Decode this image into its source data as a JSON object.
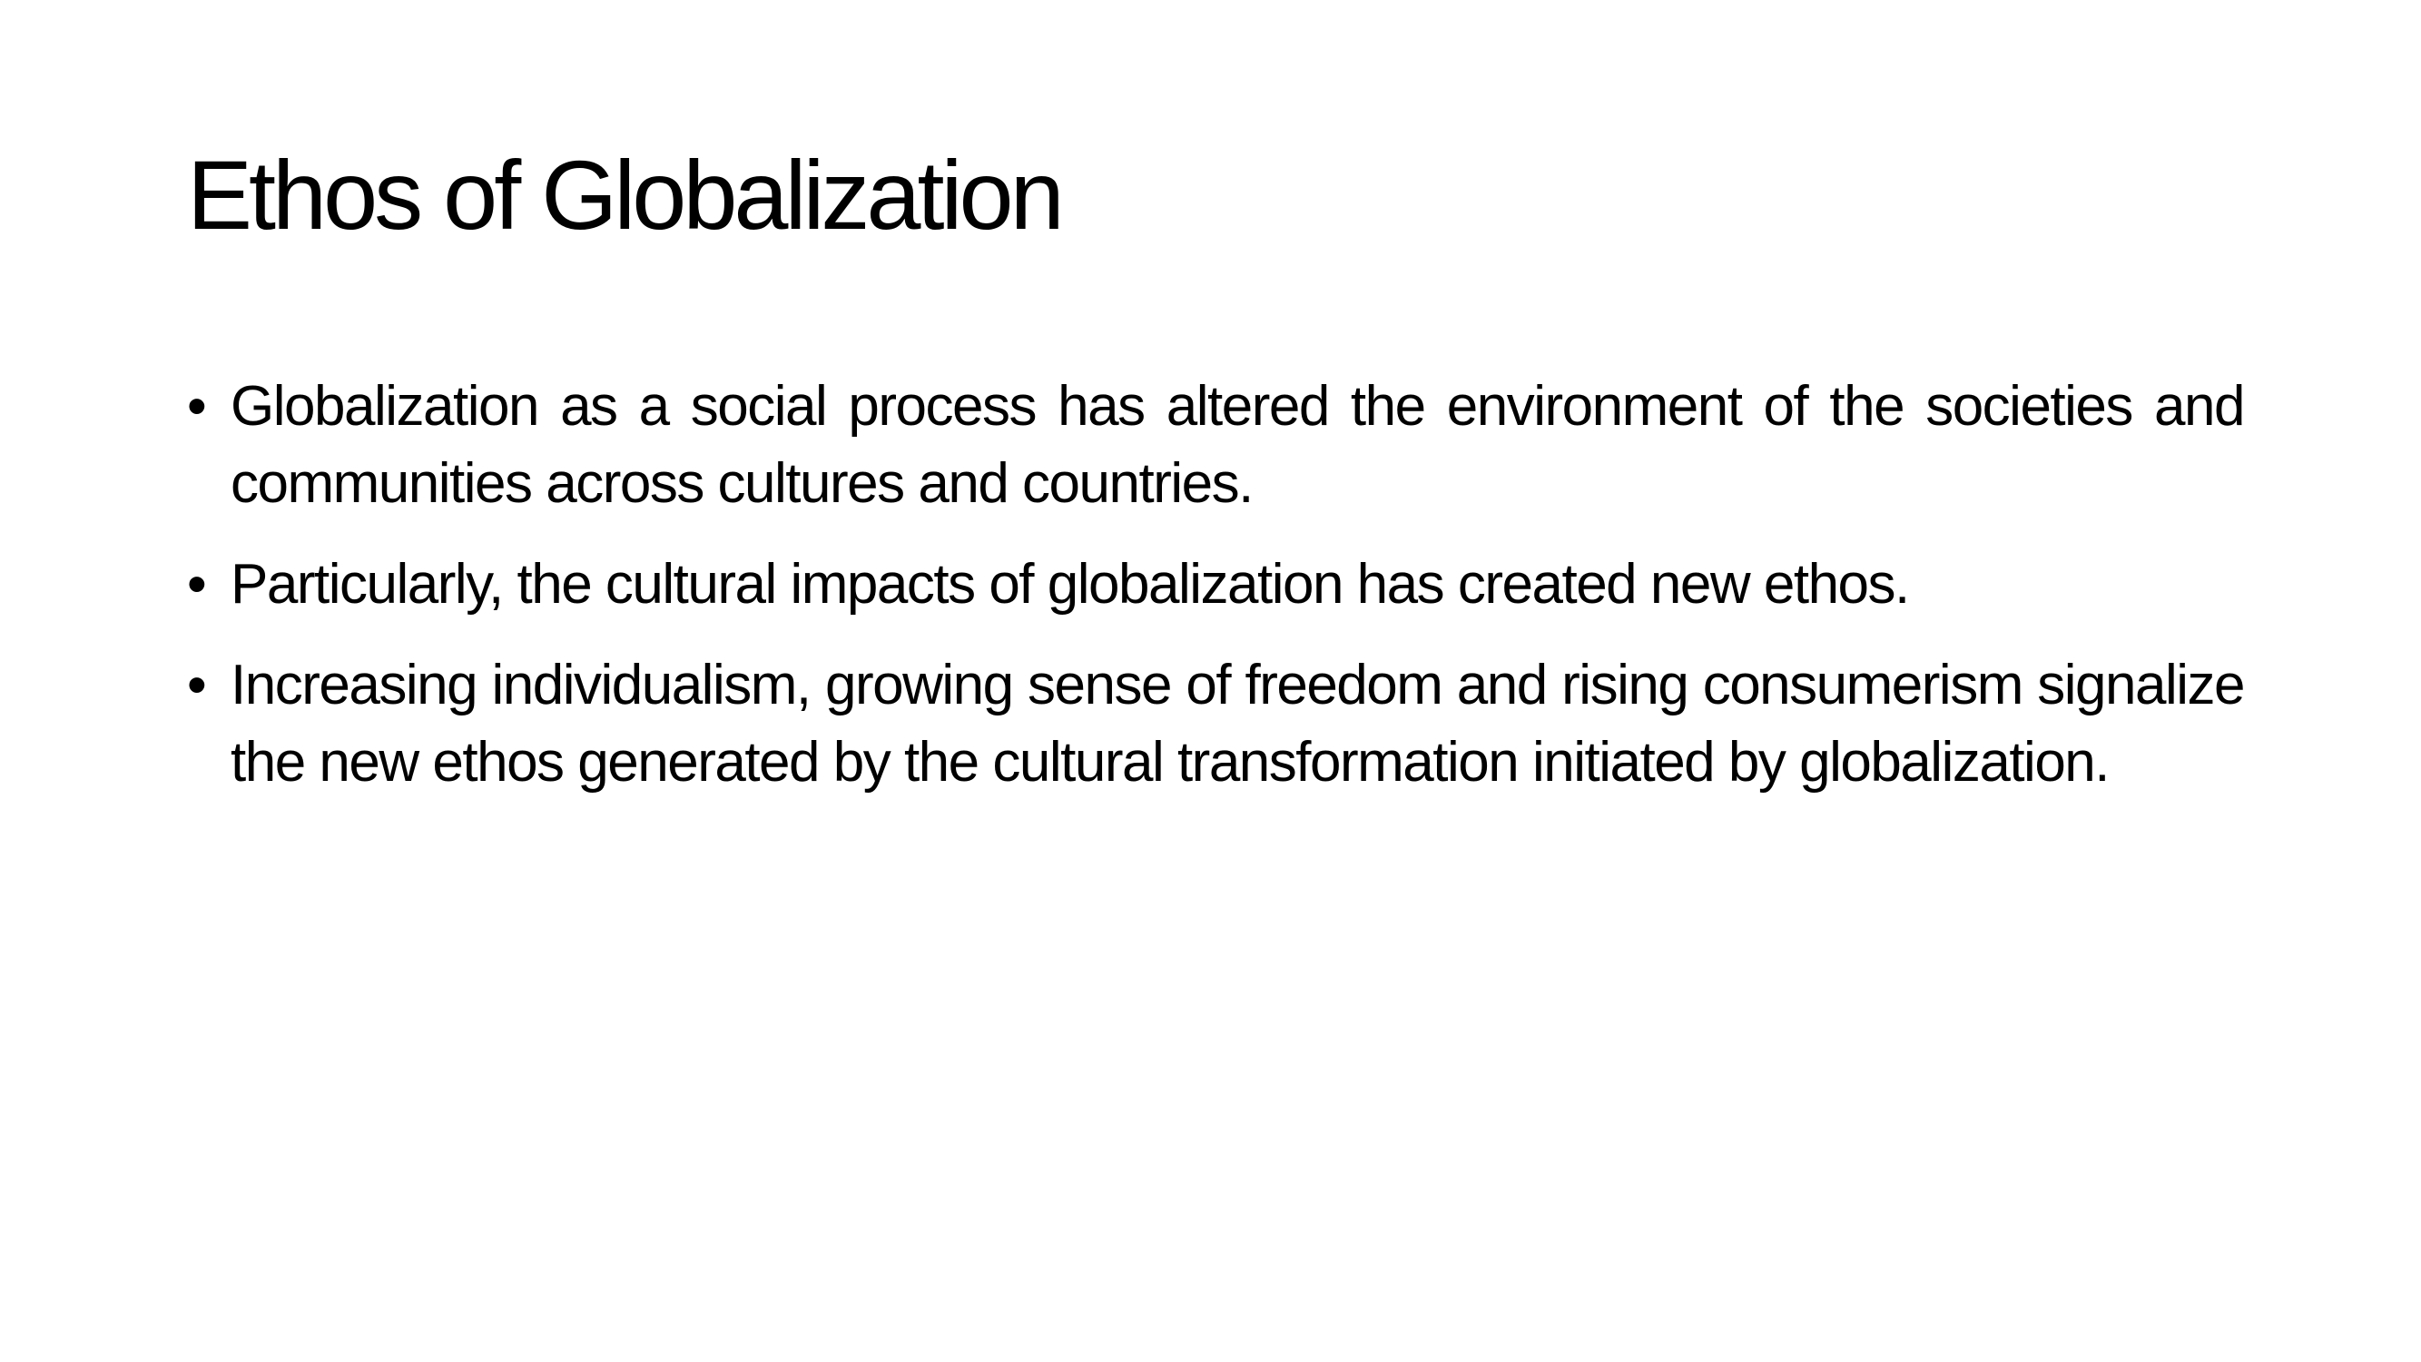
{
  "slide": {
    "title": "Ethos of Globalization",
    "bullet_glyph": "•",
    "bullets": [
      "Globalization as a social process has altered the environment of the societies and communities across cultures and countries.",
      "Particularly, the cultural impacts of globalization has created new ethos.",
      "Increasing individualism, growing sense of freedom and rising consumerism signalize the new ethos generated by the cultural transformation initiated by globalization."
    ]
  }
}
